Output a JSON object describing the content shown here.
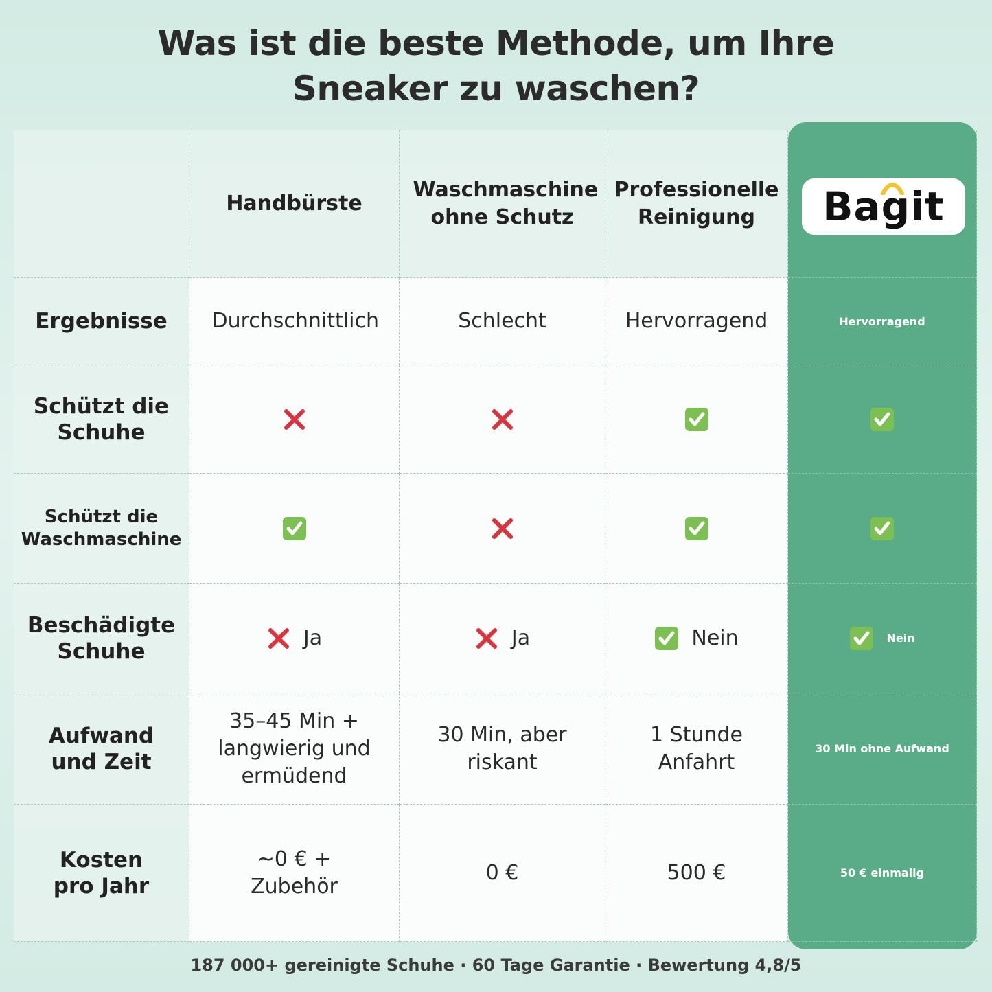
{
  "title": "Was ist die beste Methode, um Ihre Sneaker zu waschen?",
  "table": {
    "columns": [
      "Handbürste",
      "Waschmaschine ohne Schutz",
      "Professionelle Reinigung"
    ],
    "brand": "Bagit",
    "rows": [
      {
        "label": "Ergebnisse",
        "cells": [
          {
            "text": "Durchschnittlich"
          },
          {
            "text": "Schlecht"
          },
          {
            "text": "Hervorragend"
          },
          {
            "text": "Hervorragend"
          }
        ]
      },
      {
        "label": "Schützt die Schuhe",
        "cells": [
          {
            "icon": "cross"
          },
          {
            "icon": "cross"
          },
          {
            "icon": "check"
          },
          {
            "icon": "check"
          }
        ]
      },
      {
        "label": "Schützt die Waschmaschine",
        "cells": [
          {
            "icon": "check"
          },
          {
            "icon": "cross"
          },
          {
            "icon": "check"
          },
          {
            "icon": "check"
          }
        ]
      },
      {
        "label": "Beschädigte Schuhe",
        "cells": [
          {
            "icon": "cross",
            "text": "Ja"
          },
          {
            "icon": "cross",
            "text": "Ja"
          },
          {
            "icon": "check",
            "text": "Nein"
          },
          {
            "icon": "check",
            "text": "Nein"
          }
        ]
      },
      {
        "label": "Aufwand und Zeit",
        "cells": [
          {
            "text": "35–45 Min + langwierig und ermüdend"
          },
          {
            "text": "30 Min, aber riskant"
          },
          {
            "text": "1 Stunde Anfahrt"
          },
          {
            "text": "30 Min ohne Aufwand"
          }
        ]
      },
      {
        "label": "Kosten pro Jahr",
        "cells": [
          {
            "text": "~0 € + Zubehör"
          },
          {
            "text": "0 €"
          },
          {
            "text": "500 €"
          },
          {
            "text": "50 € einmalig"
          }
        ]
      }
    ]
  },
  "footer": "187 000+ gereinigte Schuhe · 60 Tage Garantie · Bewertung 4,8/5"
}
